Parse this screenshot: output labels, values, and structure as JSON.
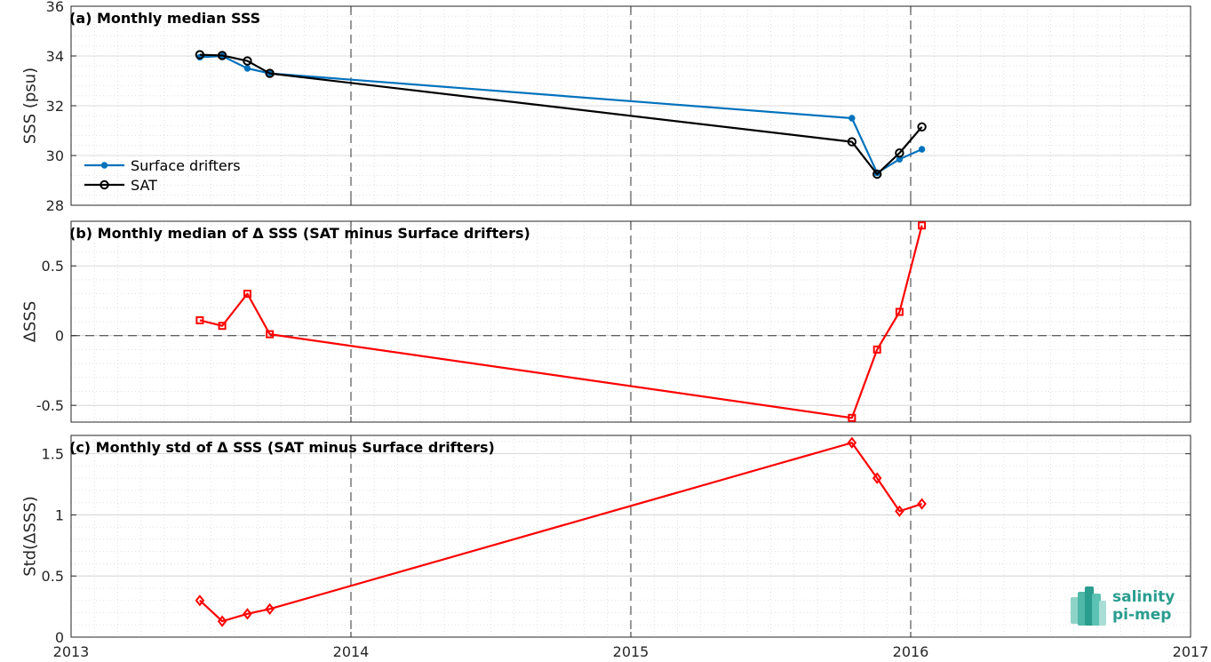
{
  "figure": {
    "x_ticks": [
      "2013",
      "2014",
      "2015",
      "2016",
      "2017"
    ],
    "logo": {
      "line1": "salinity",
      "line2": "pi-mep"
    }
  },
  "colors": {
    "surface_drifters": "#0072bd",
    "sat": "#000000",
    "delta": "#ff0000"
  },
  "chart_data": [
    {
      "type": "line",
      "title": "(a) Monthly median SSS",
      "ylabel": "SSS (psu)",
      "xlabel": "",
      "xlim": [
        2013,
        2017
      ],
      "ylim": [
        28,
        36
      ],
      "yticks": [
        "28",
        "30",
        "32",
        "34",
        "36"
      ],
      "grid": true,
      "legend_position": "lower-left",
      "x": [
        2013.46,
        2013.54,
        2013.63,
        2013.71,
        2015.79,
        2015.88,
        2015.96,
        2016.04
      ],
      "series": [
        {
          "name": "Surface drifters",
          "values": [
            33.95,
            34.0,
            33.5,
            33.3,
            31.5,
            29.3,
            29.85,
            30.25
          ]
        },
        {
          "name": "SAT",
          "values": [
            34.05,
            34.02,
            33.8,
            33.3,
            30.55,
            29.25,
            30.1,
            31.15
          ]
        }
      ]
    },
    {
      "type": "line",
      "title": "(b) Monthly median of Δ SSS (SAT minus Surface drifters)",
      "ylabel": "ΔSSS",
      "xlabel": "",
      "xlim": [
        2013,
        2017
      ],
      "ylim": [
        -0.62,
        0.82
      ],
      "yticks": [
        "-0.5",
        "0",
        "0.5"
      ],
      "grid": true,
      "zero_line": true,
      "x": [
        2013.46,
        2013.54,
        2013.63,
        2013.71,
        2015.79,
        2015.88,
        2015.96,
        2016.04
      ],
      "series": [
        {
          "values": [
            0.11,
            0.07,
            0.3,
            0.01,
            -0.59,
            -0.1,
            0.17,
            0.79
          ]
        }
      ]
    },
    {
      "type": "line",
      "title": "(c) Monthly std of Δ SSS (SAT minus Surface drifters)",
      "ylabel": "Std(ΔSSS)",
      "xlabel": "",
      "xlim": [
        2013,
        2017
      ],
      "ylim": [
        0,
        1.65
      ],
      "yticks": [
        "0",
        "0.5",
        "1",
        "1.5"
      ],
      "grid": true,
      "x": [
        2013.46,
        2013.54,
        2013.63,
        2013.71,
        2015.79,
        2015.88,
        2015.96,
        2016.04
      ],
      "series": [
        {
          "values": [
            0.3,
            0.13,
            0.19,
            0.23,
            1.59,
            1.3,
            1.03,
            1.09
          ]
        }
      ]
    }
  ]
}
